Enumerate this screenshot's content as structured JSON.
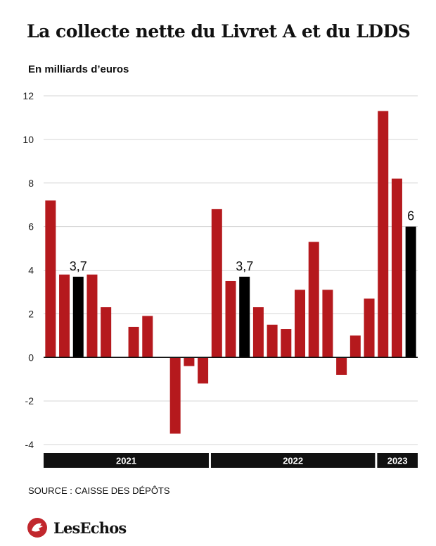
{
  "title": "La collecte nette du Livret A et du LDDS",
  "source": "SOURCE : CAISSE DES DÉPÔTS",
  "brand": "LesEchos",
  "colors": {
    "bar": "#b5191d",
    "highlight": "#000000",
    "grid": "#d4d4d4",
    "logo": "#c1272d"
  },
  "chart_data": {
    "type": "bar",
    "ylabel": "En milliards d’euros",
    "ylim": [
      -4,
      12
    ],
    "yticks": [
      12,
      10,
      8,
      6,
      4,
      2,
      0,
      -2,
      -4
    ],
    "grid": true,
    "years": [
      {
        "label": "2021",
        "months": 12
      },
      {
        "label": "2022",
        "months": 12
      },
      {
        "label": "2023",
        "months": 3
      }
    ],
    "values": [
      7.2,
      3.8,
      3.7,
      3.8,
      2.3,
      0,
      1.4,
      1.9,
      0,
      -3.5,
      -0.4,
      -1.2,
      6.8,
      3.5,
      3.7,
      2.3,
      1.5,
      1.3,
      3.1,
      5.3,
      3.1,
      -0.8,
      1.0,
      2.7,
      11.3,
      8.2,
      6.0
    ],
    "highlighted": [
      2,
      14,
      26
    ],
    "data_labels": [
      {
        "index": 2,
        "text": "3,7"
      },
      {
        "index": 14,
        "text": "3,7"
      },
      {
        "index": 26,
        "text": "6"
      }
    ]
  }
}
